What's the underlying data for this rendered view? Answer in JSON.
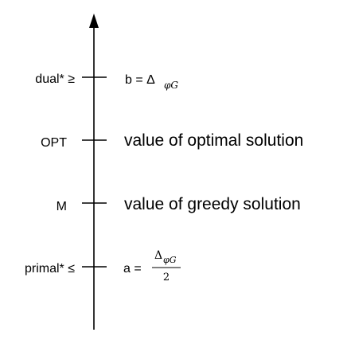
{
  "axis": {
    "direction": "up"
  },
  "levels": [
    {
      "id": "dual",
      "left_label": "dual* ≥",
      "right_label": "b = Δ",
      "right_sub": "φG"
    },
    {
      "id": "opt",
      "left_label": "OPT",
      "right_label": "value of optimal solution"
    },
    {
      "id": "greedy",
      "left_label": "M",
      "right_label": "value of greedy solution"
    },
    {
      "id": "primal",
      "left_label": "primal* ≤",
      "right_label": "a =",
      "frac_num": "Δ",
      "frac_num_sub": "φG",
      "frac_den": "2"
    }
  ]
}
